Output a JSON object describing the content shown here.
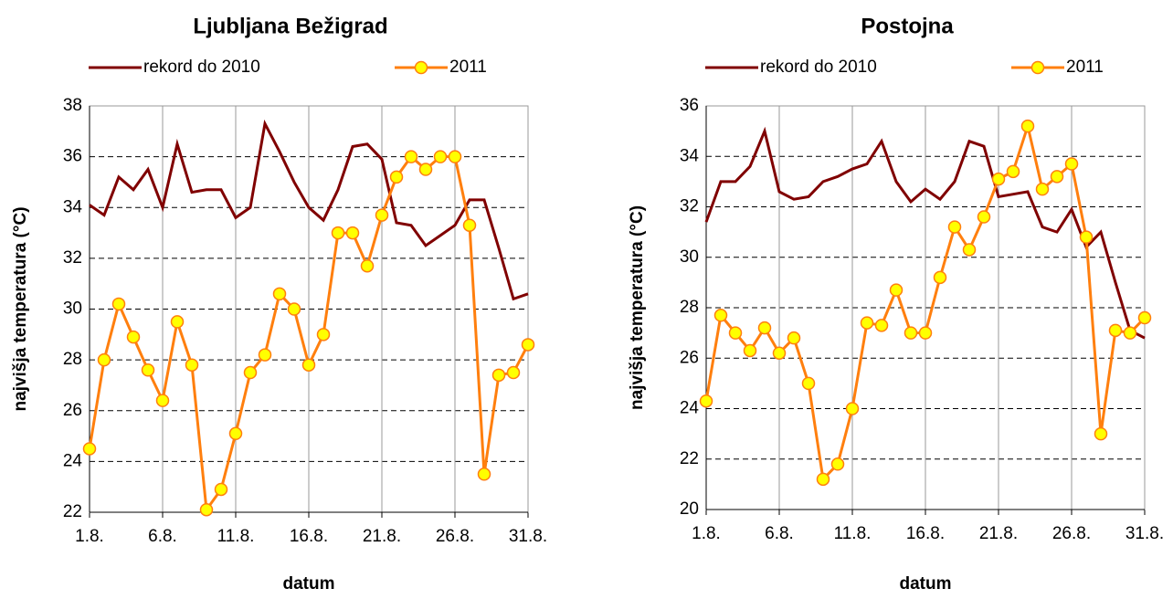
{
  "chart_data": [
    {
      "type": "line",
      "title": "Ljubljana Bežigrad",
      "xlabel": "datum",
      "ylabel": "najvišja temperatura (°C)",
      "categories": [
        "1.8.",
        null,
        null,
        null,
        null,
        "6.8.",
        null,
        null,
        null,
        null,
        "11.8.",
        null,
        null,
        null,
        null,
        "16.8.",
        null,
        null,
        null,
        null,
        "21.8.",
        null,
        null,
        null,
        null,
        "26.8.",
        null,
        null,
        null,
        null,
        "31.8."
      ],
      "series": [
        {
          "name": "rekord do 2010",
          "color": "#800000",
          "values": [
            34.1,
            33.7,
            35.2,
            34.7,
            35.5,
            34.0,
            36.5,
            34.6,
            34.7,
            34.7,
            33.6,
            34.0,
            37.3,
            36.2,
            35.0,
            34.0,
            33.5,
            34.7,
            36.4,
            36.5,
            35.9,
            33.4,
            33.3,
            32.5,
            32.9,
            33.3,
            34.3,
            34.3,
            32.4,
            30.4,
            30.6
          ]
        },
        {
          "name": "2011",
          "color": "#ff7f0e",
          "marker_color": "#ffff00",
          "values": [
            24.5,
            28.0,
            30.2,
            28.9,
            27.6,
            26.4,
            29.5,
            27.8,
            22.1,
            22.9,
            25.1,
            27.5,
            28.2,
            30.6,
            30.0,
            27.8,
            29.0,
            33.0,
            33.0,
            31.7,
            33.7,
            35.2,
            36.0,
            35.5,
            36.0,
            36.0,
            33.3,
            23.5,
            27.4,
            27.5,
            28.6
          ]
        }
      ],
      "ylim": [
        22,
        38
      ],
      "yticks": [
        22,
        24,
        26,
        28,
        30,
        32,
        34,
        36,
        38
      ],
      "grid": true
    },
    {
      "type": "line",
      "title": "Postojna",
      "xlabel": "datum",
      "ylabel": "najvišja temperatura (°C)",
      "categories": [
        "1.8.",
        null,
        null,
        null,
        null,
        "6.8.",
        null,
        null,
        null,
        null,
        "11.8.",
        null,
        null,
        null,
        null,
        "16.8.",
        null,
        null,
        null,
        null,
        "21.8.",
        null,
        null,
        null,
        null,
        "26.8.",
        null,
        null,
        null,
        null,
        "31.8."
      ],
      "series": [
        {
          "name": "rekord do 2010",
          "color": "#800000",
          "values": [
            31.4,
            33.0,
            33.0,
            33.6,
            35.0,
            32.6,
            32.3,
            32.4,
            33.0,
            33.2,
            33.5,
            33.7,
            34.6,
            33.0,
            32.2,
            32.7,
            32.3,
            33.0,
            34.6,
            34.4,
            32.4,
            32.5,
            32.6,
            31.2,
            31.0,
            31.9,
            30.4,
            31.0,
            29.0,
            27.1,
            26.8
          ]
        },
        {
          "name": "2011",
          "color": "#ff7f0e",
          "marker_color": "#ffff00",
          "values": [
            24.3,
            27.7,
            27.0,
            26.3,
            27.2,
            26.2,
            26.8,
            25.0,
            21.2,
            21.8,
            24.0,
            27.4,
            27.3,
            28.7,
            27.0,
            27.0,
            29.2,
            31.2,
            30.3,
            31.6,
            33.1,
            33.4,
            35.2,
            32.7,
            33.2,
            33.7,
            30.8,
            23.0,
            27.1,
            27.0,
            27.6
          ]
        }
      ],
      "ylim": [
        20,
        36
      ],
      "yticks": [
        20,
        22,
        24,
        26,
        28,
        30,
        32,
        34,
        36
      ],
      "grid": true
    }
  ]
}
